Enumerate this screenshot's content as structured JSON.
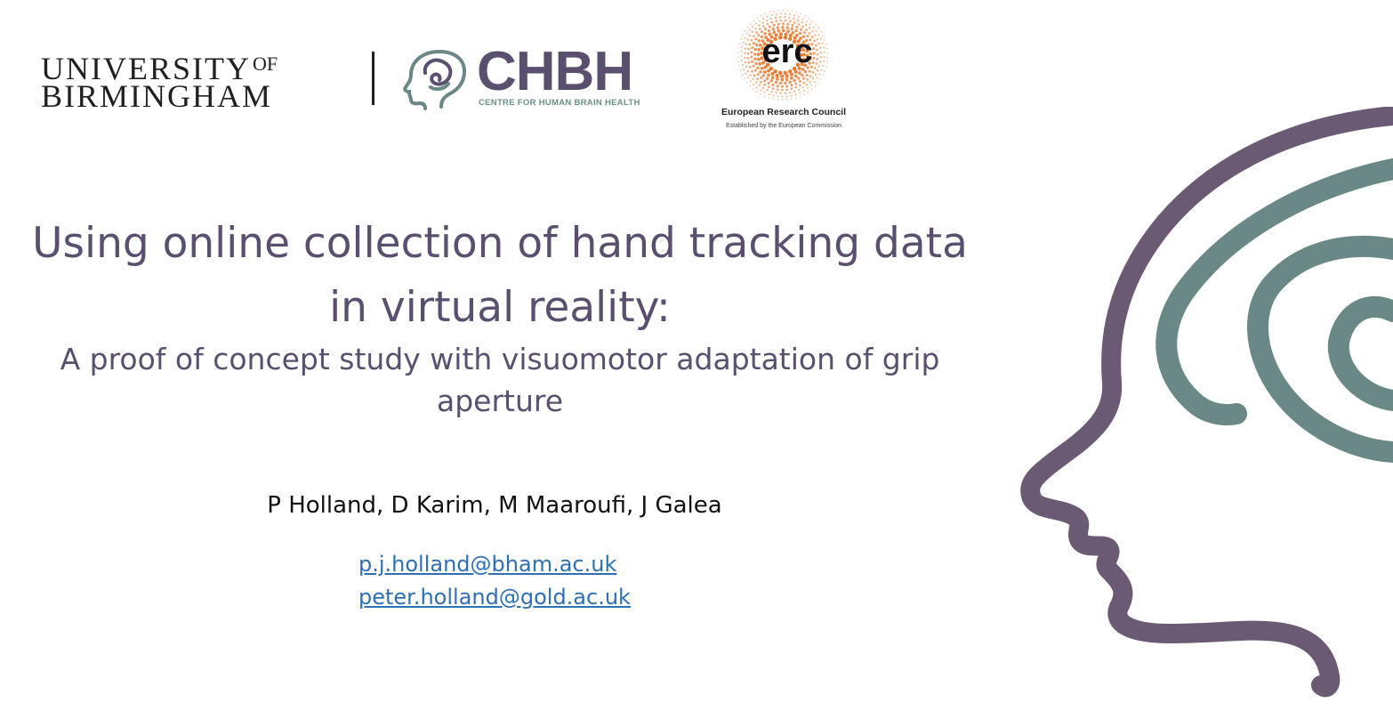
{
  "logos": {
    "university": {
      "line1": "UNIVERSITY",
      "of": "OF",
      "line2": "BIRMINGHAM"
    },
    "chbh": {
      "name": "CHBH",
      "subtitle": "CENTRE FOR HUMAN BRAIN HEALTH",
      "icon": "head-brain-icon"
    },
    "erc": {
      "mark": "erc",
      "name": "European Research Council",
      "tagline": "Established by the European Commission"
    }
  },
  "slide": {
    "title_line1": "Using online collection of hand tracking data",
    "title_line2": "in virtual reality:",
    "subtitle_line1": "A proof of concept study with visuomotor adaptation of grip",
    "subtitle_line2": "aperture",
    "authors": "P Holland, D Karim, M Maaroufi, J Galea",
    "emails": [
      "p.j.holland@bham.ac.uk",
      "peter.holland@gold.ac.uk"
    ]
  },
  "colors": {
    "title": "#5b4f6f",
    "head_outline": "#6a5a74",
    "brain_swirl": "#6a8886",
    "link": "#2e6fb5",
    "erc_orange": "#e8792e"
  },
  "decoration": {
    "icon": "head-profile-icon"
  }
}
